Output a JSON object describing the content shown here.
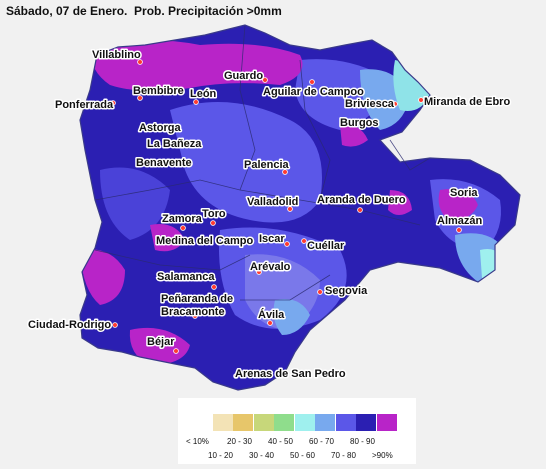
{
  "title": "Sábado, 07 de Enero.  Prob. Precipitación >0mm",
  "colors": {
    "background": "#f1f1f1",
    "dark_blue": "#2b1fb2",
    "blue": "#5b57e8",
    "light_blue": "#7aa6ea",
    "magenta": "#b824c8",
    "cyan": "#8fe3e8",
    "border": "#3a3a8a"
  },
  "cities": [
    {
      "name": "Villablino"
    },
    {
      "name": "Guardo"
    },
    {
      "name": "Bembibre"
    },
    {
      "name": "León"
    },
    {
      "name": "Aguilar de Campoo"
    },
    {
      "name": "Briviesca"
    },
    {
      "name": "Miranda de Ebro"
    },
    {
      "name": "Ponferrada"
    },
    {
      "name": "Astorga"
    },
    {
      "name": "Burgos"
    },
    {
      "name": "La Bañeza"
    },
    {
      "name": "Benavente"
    },
    {
      "name": "Palencia"
    },
    {
      "name": "Soria"
    },
    {
      "name": "Valladolid"
    },
    {
      "name": "Aranda de Duero"
    },
    {
      "name": "Almazán"
    },
    {
      "name": "Zamora"
    },
    {
      "name": "Toro"
    },
    {
      "name": "Medina del Campo"
    },
    {
      "name": "Iscar"
    },
    {
      "name": "Cuéllar"
    },
    {
      "name": "Arévalo"
    },
    {
      "name": "Salamanca"
    },
    {
      "name": "Segovia"
    },
    {
      "name": "Peñaranda de"
    },
    {
      "name": "Bracamonte"
    },
    {
      "name": "Ciudad-Rodrigo"
    },
    {
      "name": "Ávila"
    },
    {
      "name": "Béjar"
    },
    {
      "name": "Arenas de San Pedro"
    }
  ],
  "legend": {
    "swatches": [
      "#ffffff",
      "#f3e3b6",
      "#e7c66a",
      "#c7d77a",
      "#8fdd8c",
      "#9ff0ee",
      "#78a9ee",
      "#5b57e8",
      "#2b1fb2",
      "#b824c8"
    ],
    "labels_top": [
      "< 10%",
      "20 - 30",
      "40 - 50",
      "60 - 70",
      "80 - 90"
    ],
    "labels_bottom": [
      "10 - 20",
      "30 - 40",
      "50 - 60",
      "70 - 80",
      ">90%"
    ]
  }
}
